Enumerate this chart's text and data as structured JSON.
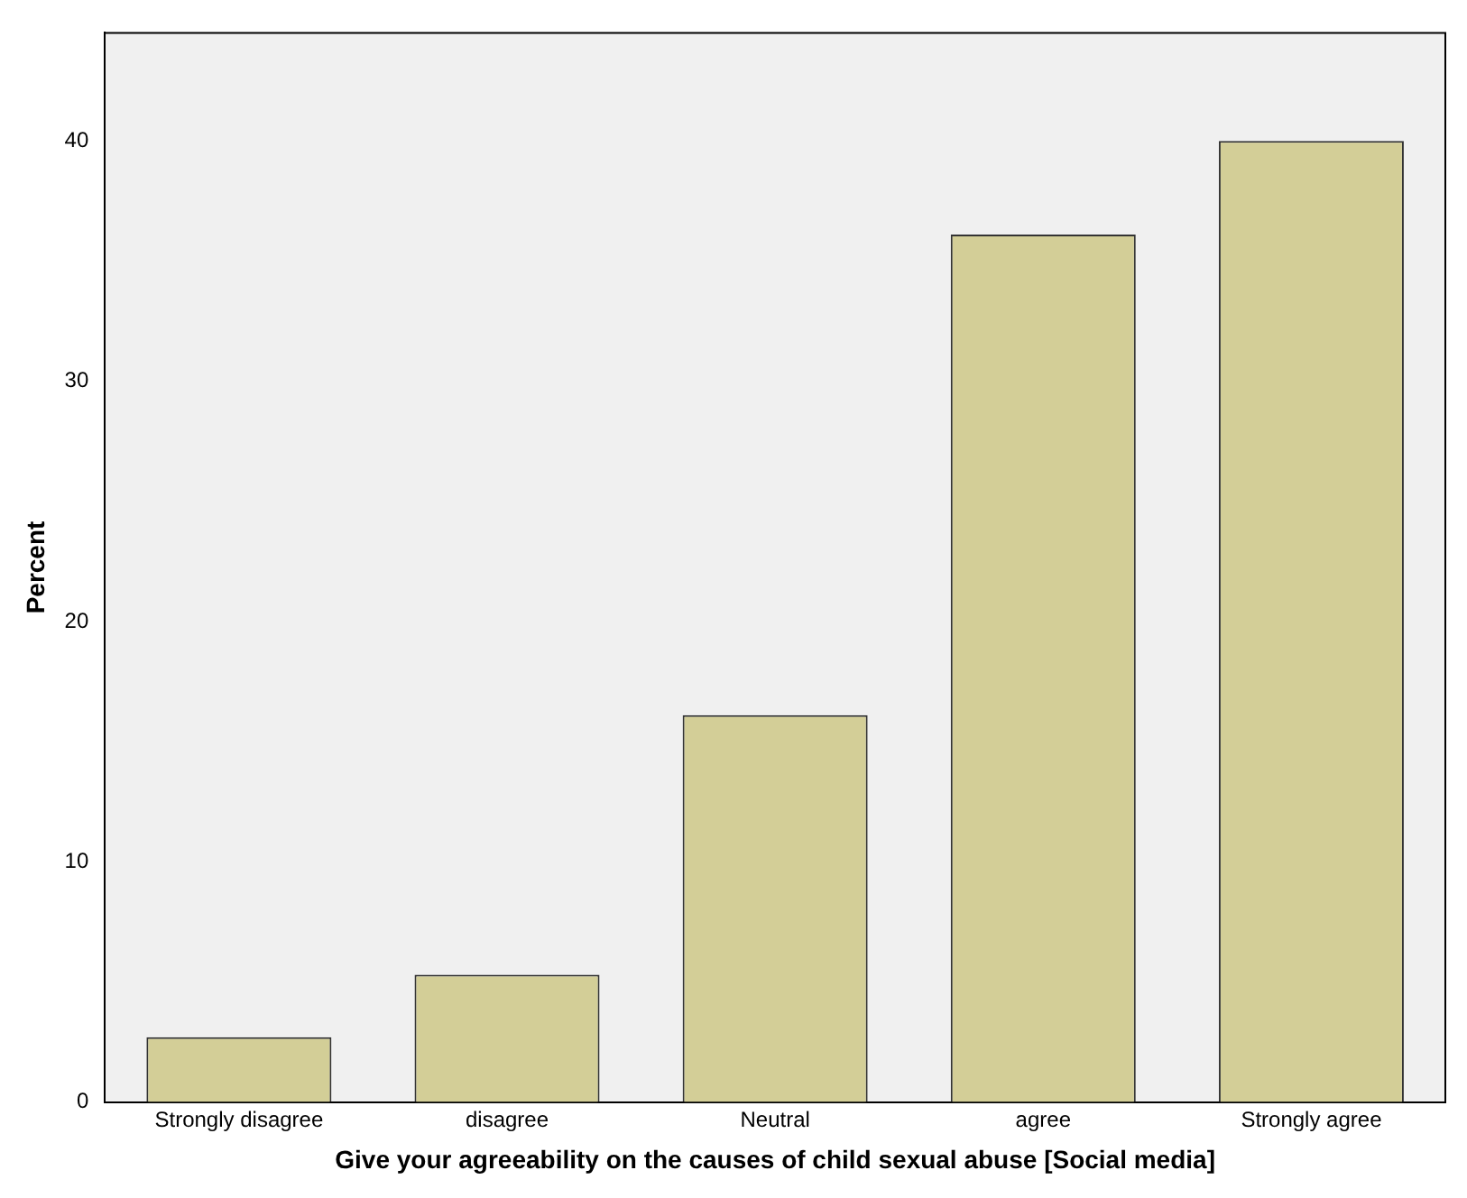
{
  "chart_data": {
    "type": "bar",
    "xlabel": "Give your agreeability on the causes of child sexual abuse [Social media]",
    "ylabel": "Percent",
    "categories": [
      "Strongly disagree",
      "disagree",
      "Neutral",
      "agree",
      "Strongly agree"
    ],
    "values": [
      2.7,
      5.3,
      16.1,
      36.1,
      40.0
    ],
    "color": "#d3ce97",
    "ylim": [
      0,
      44.5
    ],
    "yticks": [
      0,
      10,
      20,
      30,
      40
    ],
    "grid": false,
    "legend": false
  }
}
